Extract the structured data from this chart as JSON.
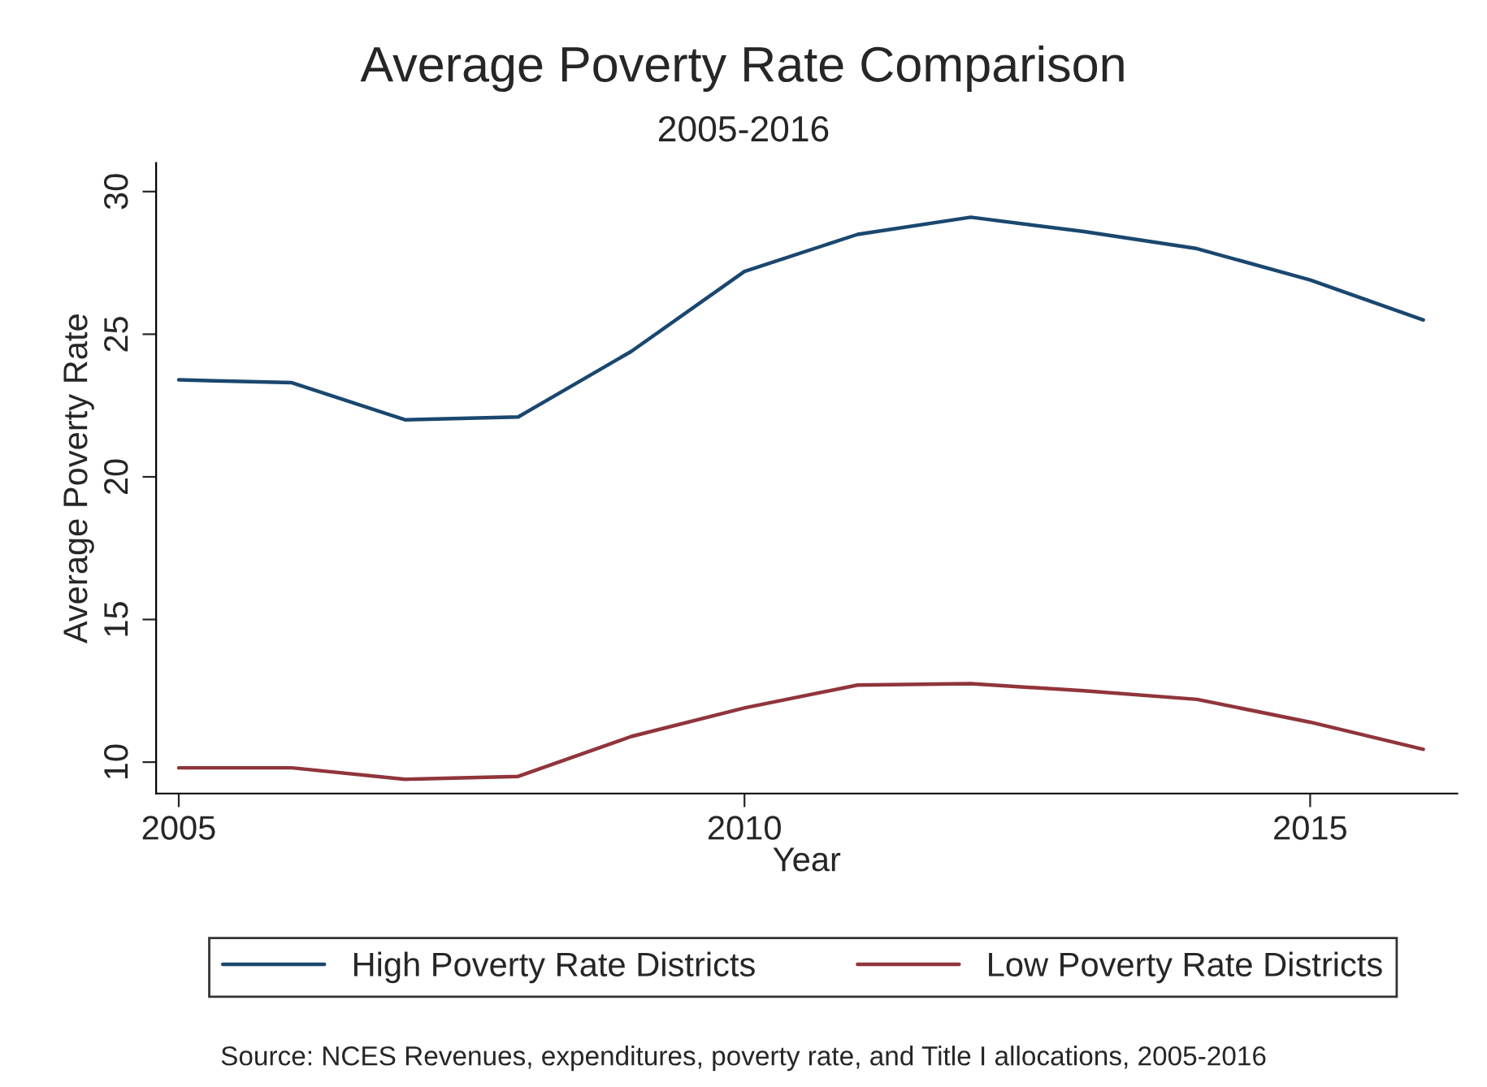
{
  "chart_data": {
    "type": "line",
    "title": "Average Poverty Rate Comparison",
    "subtitle": "2005-2016",
    "xlabel": "Year",
    "ylabel": "Average Poverty Rate",
    "x": [
      2005,
      2006,
      2007,
      2008,
      2009,
      2010,
      2011,
      2012,
      2013,
      2014,
      2015,
      2016
    ],
    "series": [
      {
        "name": "High Poverty Rate Districts",
        "color": "#1a476f",
        "values": [
          23.4,
          23.3,
          22.0,
          22.1,
          24.4,
          27.2,
          28.5,
          29.1,
          28.6,
          28.0,
          26.9,
          25.5
        ]
      },
      {
        "name": "Low Poverty Rate Districts",
        "color": "#90353b",
        "values": [
          9.8,
          9.8,
          9.4,
          9.5,
          10.9,
          11.9,
          12.7,
          12.75,
          12.5,
          12.2,
          11.4,
          10.45
        ]
      }
    ],
    "xlim": [
      2004.8,
      2016.3
    ],
    "xticks": [
      2005,
      2010,
      2015
    ],
    "ylim": [
      8.9,
      31
    ],
    "yticks": [
      10,
      15,
      20,
      25,
      30
    ],
    "grid": false,
    "legend": "bottom",
    "marker": "none",
    "line_style": "solid",
    "annotations": [
      "Source: NCES Revenues, expenditures, poverty rate, and Title I allocations, 2005-2016"
    ]
  }
}
